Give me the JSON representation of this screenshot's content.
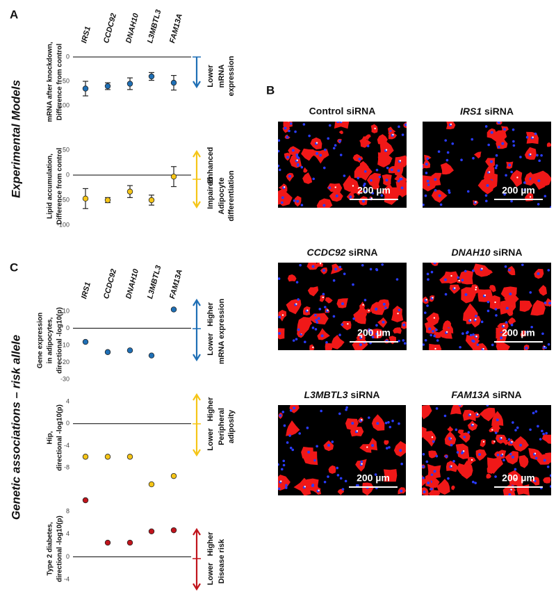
{
  "panels": {
    "a": "A",
    "b": "B",
    "c": "C"
  },
  "section_titles": {
    "experimental": "Experimental Models",
    "genetic": "Genetic associations – risk allele"
  },
  "chart_data": [
    {
      "type": "errorbar",
      "categories": [
        "IRS1",
        "CCDC92",
        "DNAH10",
        "L3MBTL3",
        "FAM13A"
      ],
      "ylabel": [
        "mRNA after knockdown,",
        "Difference from control"
      ],
      "values": [
        -65,
        -60,
        -55,
        -40,
        -53
      ],
      "errors": [
        15,
        7,
        12,
        8,
        15
      ],
      "color": "#1f6fb5",
      "ylim": [
        -100,
        0
      ],
      "yticks": [
        0,
        -50,
        -100
      ],
      "annotations": {
        "down": "Lower",
        "side": [
          "mRNA",
          "expression"
        ]
      }
    },
    {
      "type": "errorbar",
      "ylabel": [
        "Lipid accumulation,",
        "Difference from control"
      ],
      "values": [
        -47,
        -50,
        -33,
        -50,
        -3
      ],
      "errors": [
        20,
        5,
        12,
        10,
        20
      ],
      "color": "#f5c518",
      "ylim": [
        -100,
        50
      ],
      "yticks": [
        50,
        0,
        -50,
        -100
      ],
      "annotations": {
        "up": "Enhanced",
        "down": "Impaired",
        "side": [
          "Adipocyte",
          "differentiation"
        ]
      }
    },
    {
      "type": "scatter",
      "categories": [
        "IRS1",
        "CCDC92",
        "DNAH10",
        "L3MBTL3",
        "FAM13A"
      ],
      "ylabel": [
        "Gene expression",
        "in adipocytes,",
        "directional -log10(p)"
      ],
      "values": [
        -8,
        -14,
        -13,
        -16,
        11
      ],
      "color": "#1f6fb5",
      "ylim": [
        -30,
        12
      ],
      "yticks": [
        10,
        0,
        -10,
        -20,
        -30
      ],
      "annotations": {
        "up": "Higher",
        "down": "Lower",
        "side": [
          "mRNA expression"
        ]
      }
    },
    {
      "type": "scatter",
      "ylabel": [
        "Hip,",
        "directional -log10(p)"
      ],
      "values": [
        -6,
        -6,
        -6,
        -11,
        -9.5
      ],
      "color": "#f5c518",
      "ylim": [
        -12,
        4
      ],
      "yticks": [
        4,
        0,
        -4,
        -8
      ],
      "annotations": {
        "up": "Higher",
        "down": "Lower",
        "side": [
          "Peripheral",
          "adiposity"
        ]
      }
    },
    {
      "type": "scatter",
      "ylabel": [
        "Type 2 diabetes,",
        "directional -log10(p)"
      ],
      "values": [
        10,
        2.5,
        2.5,
        4.5,
        4.7
      ],
      "color": "#c0141c",
      "ylim": [
        -4,
        10
      ],
      "yticks": [
        8,
        4,
        0,
        -4
      ],
      "annotations": {
        "up": "Higher",
        "down": "Lower",
        "side": [
          "Disease risk"
        ]
      }
    }
  ],
  "images": [
    {
      "title": "Control siRNA"
    },
    {
      "gene": "IRS1",
      "suffix": " siRNA"
    },
    {
      "gene": "CCDC92",
      "suffix": " siRNA"
    },
    {
      "gene": "DNAH10",
      "suffix": " siRNA"
    },
    {
      "gene": "L3MBTL3",
      "suffix": " siRNA"
    },
    {
      "gene": "FAM13A",
      "suffix": " siRNA"
    }
  ],
  "scale_label": "200 µm"
}
